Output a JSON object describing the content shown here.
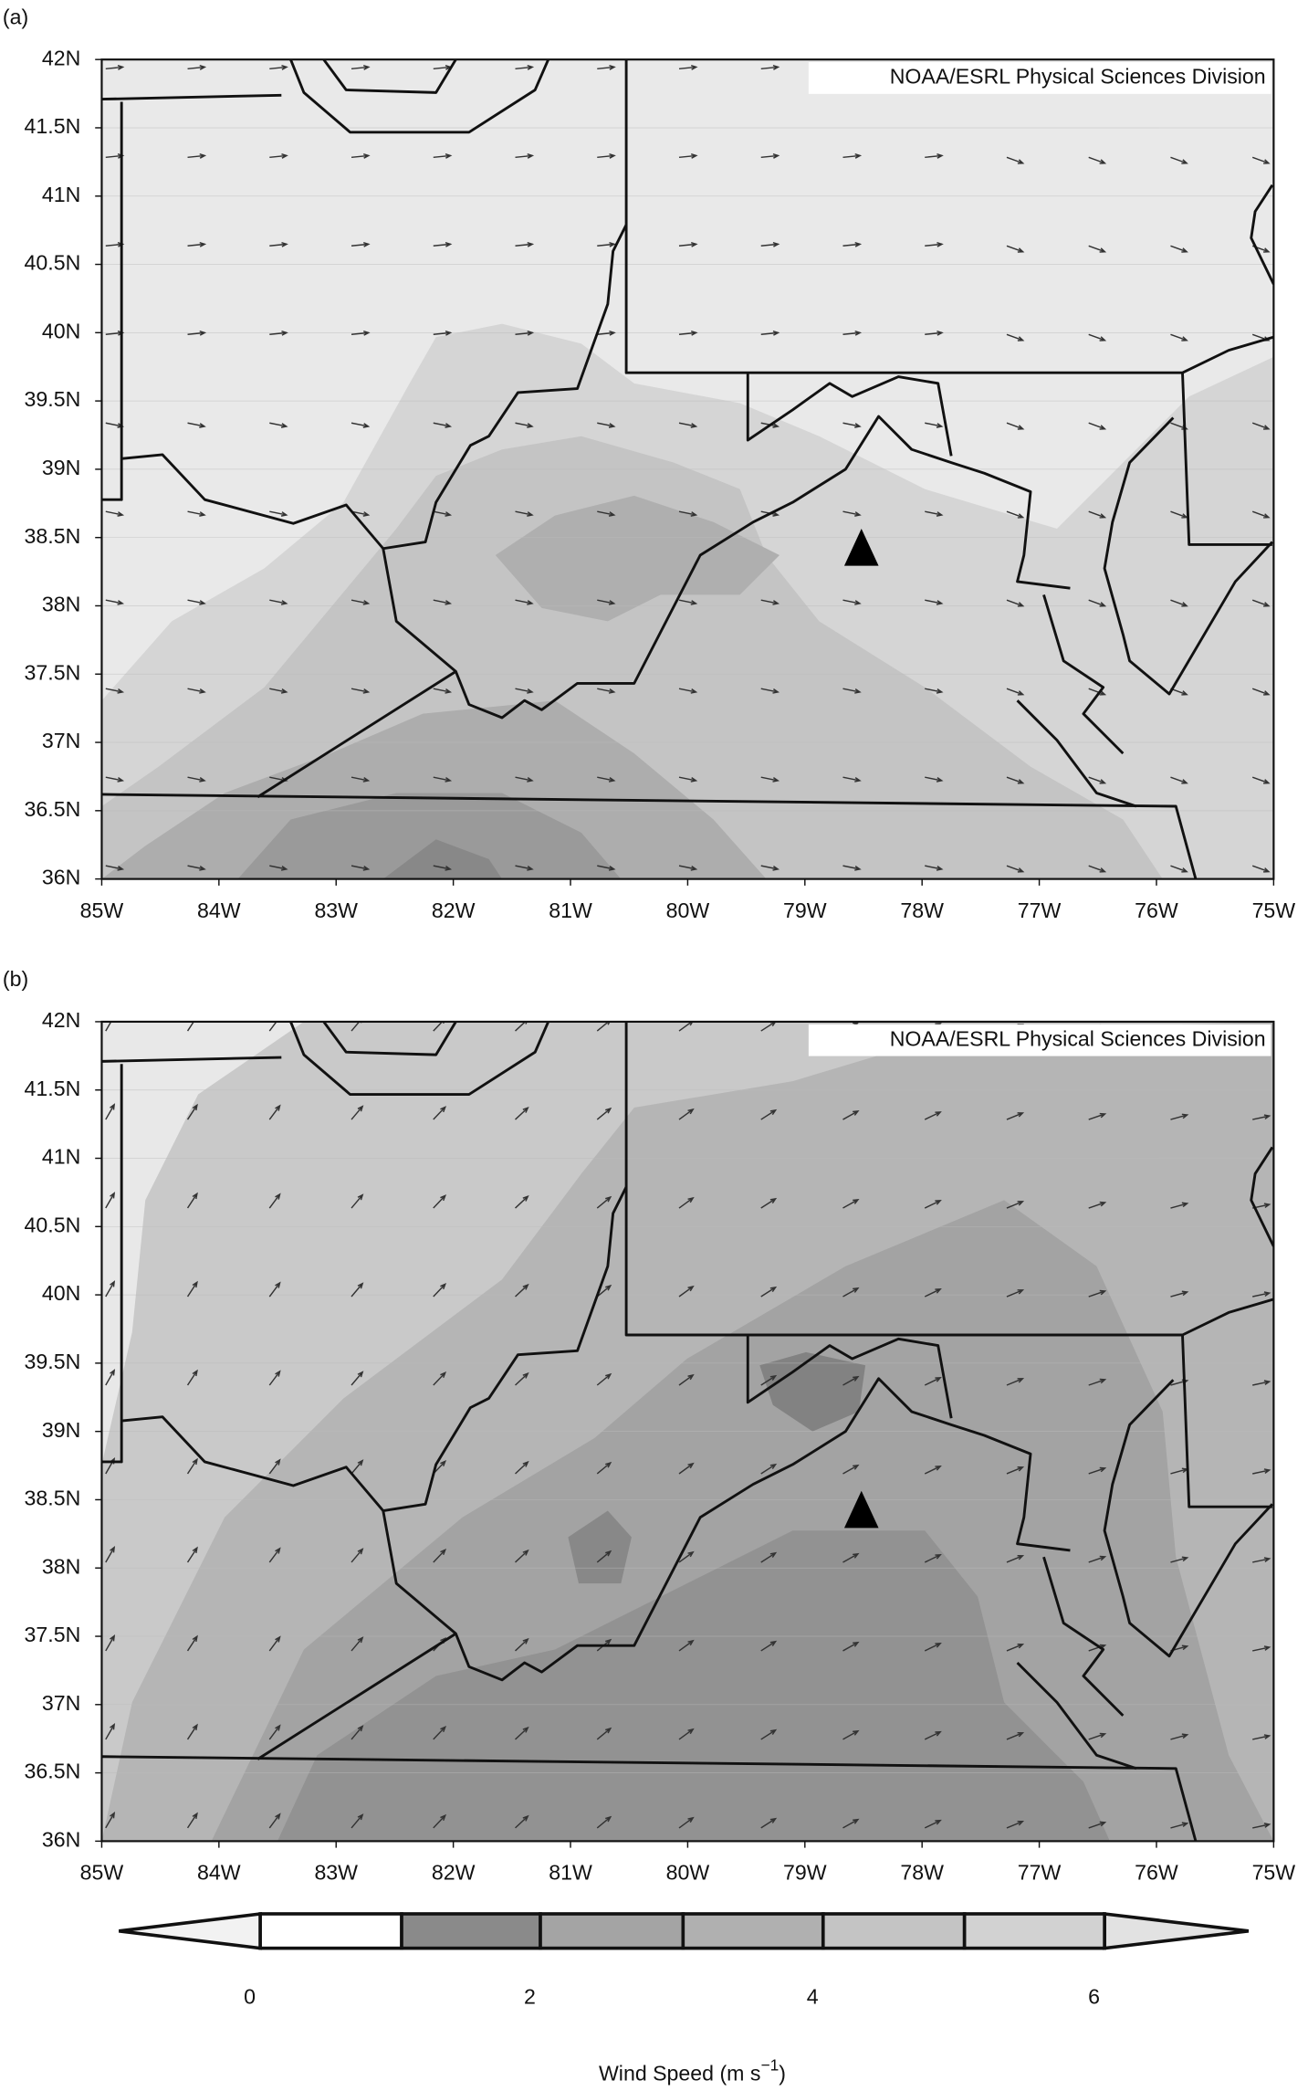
{
  "panels": [
    {
      "label": "(a)",
      "credit": "NOAA/ESRL Physical Sciences Division",
      "lat_labels": [
        "42N",
        "41.5N",
        "41N",
        "40.5N",
        "40N",
        "39.5N",
        "39N",
        "38.5N",
        "38N",
        "37.5N",
        "37N",
        "36.5N",
        "36N"
      ],
      "lon_labels": [
        "85W",
        "84W",
        "83W",
        "82W",
        "81W",
        "80W",
        "79W",
        "78W",
        "77W",
        "76W",
        "75W"
      ]
    },
    {
      "label": "(b)",
      "credit": "NOAA/ESRL Physical Sciences Division",
      "lat_labels": [
        "42N",
        "41.5N",
        "41N",
        "40.5N",
        "40N",
        "39.5N",
        "39N",
        "38.5N",
        "38N",
        "37.5N",
        "37N",
        "36.5N",
        "36N"
      ],
      "lon_labels": [
        "85W",
        "84W",
        "83W",
        "82W",
        "81W",
        "80W",
        "79W",
        "78W",
        "77W",
        "76W",
        "75W"
      ]
    }
  ],
  "colorbar": {
    "tick_labels": [
      0,
      2,
      4,
      6
    ],
    "title": "Wind Speed (m s",
    "title_superscript": "−1",
    "title_end": ")"
  }
}
